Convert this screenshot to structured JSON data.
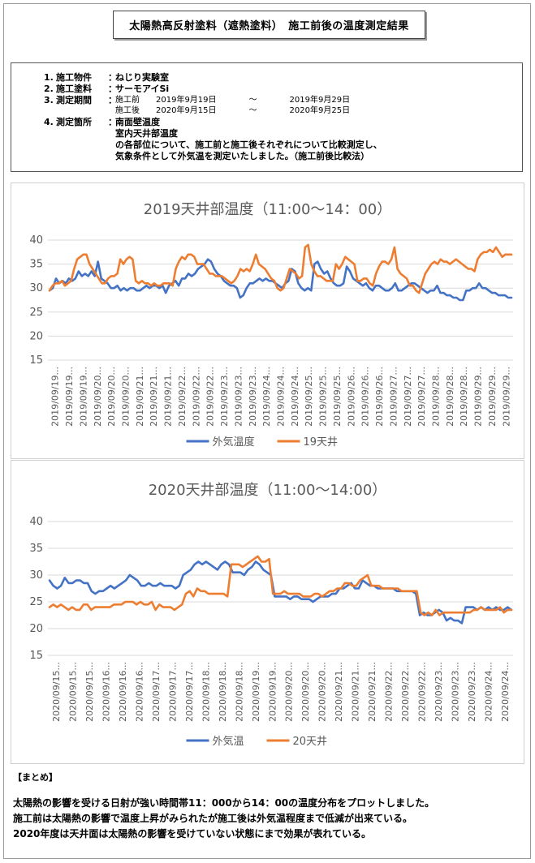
{
  "header": {
    "title": "太陽熱高反射塗料（遮熱塗料）　施工前後の温度測定結果"
  },
  "info": {
    "rows": [
      {
        "num": "1.",
        "key": "施工物件",
        "colon": "：",
        "value": "ねじり実験室"
      },
      {
        "num": "2.",
        "key": "施工塗料",
        "colon": "：",
        "value": "サーモアイSi"
      },
      {
        "num": "3.",
        "key": "測定期間",
        "colon": "：",
        "value": "施工前　　2019年9月19日　　　　～　　　　2019年9月29日"
      },
      {
        "num": "",
        "key": "",
        "colon": "",
        "value": "施工後　　2020年9月15日　　　　～　　　　2020年9月25日"
      },
      {
        "num": "4.",
        "key": "測定箇所",
        "colon": "：",
        "value": "南面壁温度"
      },
      {
        "num": "",
        "key": "",
        "colon": "",
        "value": "室内天井部温度"
      },
      {
        "num": "",
        "key": "",
        "colon": "",
        "value": "の各部位について、施工前と施工後それぞれについて比較測定し、"
      },
      {
        "num": "",
        "key": "",
        "colon": "",
        "value": "気象条件として外気温を測定いたしました。（施工前後比較法）"
      }
    ]
  },
  "chart_data": [
    {
      "type": "line",
      "title": "2019天井部温度（11:00～14：00）",
      "xlabel": "",
      "ylabel": "",
      "ylim": [
        15,
        40
      ],
      "yticks": [
        15,
        20,
        25,
        30,
        35,
        40
      ],
      "grid": true,
      "legend": "bottom",
      "xtick_labels": [
        "2019/09/19...",
        "2019/09/19...",
        "2019/09/19...",
        "2019/09/20...",
        "2019/09/20...",
        "2019/09/20...",
        "2019/09/21...",
        "2019/09/21...",
        "2019/09/21...",
        "2019/09/22...",
        "2019/09/22...",
        "2019/09/22...",
        "2019/09/23...",
        "2019/09/23...",
        "2019/09/23...",
        "2019/09/24...",
        "2019/09/24...",
        "2019/09/24...",
        "2019/09/25...",
        "2019/09/25...",
        "2019/09/25...",
        "2019/09/26...",
        "2019/09/26...",
        "2019/09/26...",
        "2019/09/27...",
        "2019/09/27...",
        "2019/09/27...",
        "2019/09/28...",
        "2019/09/28...",
        "2019/09/28...",
        "2019/09/29...",
        "2019/09/29...",
        "2019/09/29..."
      ],
      "series": [
        {
          "name": "外気温度",
          "color": "#4472c4",
          "values": [
            29.5,
            30,
            32,
            31,
            31.5,
            31,
            32,
            31.5,
            32,
            33.5,
            32.5,
            33,
            32.5,
            33.5,
            32.5,
            35.5,
            32,
            31.5,
            31,
            30,
            30,
            30.5,
            29.5,
            30,
            29.5,
            30,
            30,
            29.5,
            29.5,
            30,
            30.5,
            30,
            30.5,
            30.5,
            30,
            30.5,
            29,
            30.5,
            31,
            31.5,
            30.5,
            32,
            32,
            33,
            32.5,
            33,
            34,
            34.5,
            35,
            36,
            35.5,
            34,
            33,
            32.5,
            31.5,
            31,
            30.5,
            30.5,
            30,
            28,
            28.5,
            30,
            31,
            31,
            31.5,
            32,
            31.5,
            32,
            31.5,
            31.5,
            31,
            30.5,
            30,
            31,
            31.5,
            34,
            33.5,
            31,
            30,
            29.5,
            30,
            29.5,
            35,
            35.5,
            34,
            33,
            33.5,
            32,
            31,
            30.5,
            30.5,
            31,
            34.5,
            33.5,
            32,
            31.5,
            31,
            30.5,
            31,
            30,
            29.5,
            30.5,
            30.5,
            30,
            29.5,
            29.5,
            30,
            31,
            29.5,
            29.5,
            30,
            30.5,
            31,
            31,
            30.5,
            30,
            29.5,
            29,
            29.5,
            29.5,
            30.5,
            29,
            29,
            28.5,
            28.5,
            28,
            28,
            27.5,
            27.5,
            29.5,
            29.5,
            30,
            30,
            31,
            30,
            30,
            29.5,
            29,
            29,
            28.5,
            28.5,
            28.5,
            28,
            28
          ]
        },
        {
          "name": "19天井",
          "color": "#ed7d31",
          "values": [
            29.5,
            30.5,
            31,
            31,
            31.5,
            30.5,
            31,
            31.5,
            34,
            36,
            36.5,
            37,
            37,
            35,
            34,
            33,
            32,
            31,
            31,
            32,
            32.5,
            32.5,
            33,
            36,
            35,
            36,
            36.5,
            36,
            31.5,
            31,
            31.5,
            31,
            31,
            30.5,
            31,
            30.5,
            30.5,
            31,
            31,
            31,
            30.5,
            34,
            35.5,
            36.5,
            36,
            37,
            37,
            36.5,
            35,
            35,
            35,
            34,
            33,
            33,
            32.5,
            32.5,
            32.5,
            32,
            31.5,
            31,
            31.5,
            32.5,
            34,
            33.5,
            34,
            33.5,
            35,
            37,
            35,
            34.5,
            34,
            33,
            32,
            31.5,
            30,
            29.5,
            30,
            32,
            34,
            33.5,
            33,
            32,
            32.5,
            38.5,
            39,
            35,
            33.5,
            32.5,
            32.5,
            32,
            31.5,
            31.5,
            31.5,
            35,
            34,
            35,
            36.5,
            36,
            35.5,
            35,
            31.5,
            31.5,
            32,
            32,
            31,
            30.5,
            33,
            34.5,
            35.5,
            35.5,
            35,
            36,
            38.5,
            34,
            33,
            32.5,
            32,
            30.5,
            30.5,
            29.5,
            29,
            31,
            33,
            34,
            35,
            35.5,
            35,
            36,
            35.5,
            35.5,
            35,
            35.5,
            36,
            35.5,
            35,
            34.5,
            34,
            34,
            33.5,
            36,
            37,
            37.5,
            37.5,
            38,
            37.5,
            38.5,
            37.5,
            36.5,
            37,
            37,
            37
          ]
        }
      ]
    },
    {
      "type": "line",
      "title": "2020天井部温度（11:00～14:00）",
      "xlabel": "",
      "ylabel": "",
      "ylim": [
        15,
        40
      ],
      "yticks": [
        15,
        20,
        25,
        30,
        35,
        40
      ],
      "grid": true,
      "legend": "bottom",
      "xtick_labels": [
        "2020/09/15...",
        "2020/09/15...",
        "2020/09/15...",
        "2020/09/16...",
        "2020/09/16...",
        "2020/09/16...",
        "2020/09/17...",
        "2020/09/17...",
        "2020/09/17...",
        "2020/09/18...",
        "2020/09/18...",
        "2020/09/18...",
        "2020/09/19...",
        "2020/09/19...",
        "2020/09/20...",
        "2020/09/20...",
        "2020/09/20...",
        "2020/09/21...",
        "2020/09/21...",
        "2020/09/21...",
        "2020/09/22...",
        "2020/09/22...",
        "2020/09/22...",
        "2020/09/23...",
        "2020/09/23...",
        "2020/09/23...",
        "2020/09/24...",
        "2020/09/24..."
      ],
      "series": [
        {
          "name": "外気温",
          "color": "#4472c4",
          "values": [
            29,
            28,
            27.5,
            28,
            29.5,
            28.5,
            28.5,
            29,
            29,
            28.5,
            28.5,
            27,
            26.5,
            27,
            27,
            27.5,
            28,
            27.5,
            28,
            28.5,
            29,
            30,
            29.5,
            29,
            28,
            28,
            28.5,
            28,
            28,
            28.5,
            28,
            28,
            28,
            27.5,
            28,
            30,
            30.5,
            31,
            32,
            32.5,
            32,
            32.5,
            32,
            31.5,
            31,
            32,
            32.5,
            32,
            30.5,
            30.5,
            30.5,
            30,
            31,
            31.5,
            32.5,
            32,
            31,
            30.5,
            30,
            26,
            26,
            26,
            26,
            25.5,
            26,
            26,
            25.5,
            25.5,
            25.5,
            25,
            25.5,
            26,
            26,
            26,
            26.5,
            26.5,
            27.5,
            27.5,
            28,
            28.5,
            27.5,
            27.5,
            29,
            28.5,
            28,
            28,
            27.5,
            27.5,
            27.5,
            27.5,
            27.5,
            27,
            27,
            27,
            27,
            27,
            26.5,
            22.5,
            23,
            22.5,
            22.5,
            23,
            23.5,
            23,
            21.5,
            22,
            21.5,
            21.5,
            21,
            24,
            24,
            24,
            23.5,
            24,
            23.5,
            24,
            23.5,
            24,
            23.5,
            23.5,
            24,
            23.5
          ]
        },
        {
          "name": "20天井",
          "color": "#ed7d31",
          "values": [
            24,
            24.5,
            24,
            24.5,
            24,
            23.5,
            24,
            23.5,
            23.5,
            24.5,
            24.5,
            23.5,
            24,
            24,
            24,
            24,
            24,
            24.5,
            24.5,
            24.5,
            25,
            25,
            25,
            24.5,
            25,
            24.5,
            24.5,
            25,
            23.5,
            24.5,
            24,
            24,
            24,
            23.5,
            24,
            24.5,
            26.5,
            27,
            26,
            27.5,
            27,
            27,
            26.5,
            26.5,
            26.5,
            26.5,
            26.5,
            26,
            32,
            32,
            32,
            31.5,
            32,
            32.5,
            33,
            33.5,
            32.5,
            32.5,
            33,
            26.5,
            26.5,
            26.5,
            27,
            26.5,
            26.5,
            26.5,
            26.5,
            26,
            26,
            26,
            26.5,
            26.5,
            26,
            26.5,
            27,
            27,
            27.5,
            27.5,
            28.5,
            28.5,
            28,
            28,
            29,
            29.5,
            30,
            28,
            28,
            28,
            27.5,
            27.5,
            27.5,
            27.5,
            27.5,
            27,
            27,
            27,
            27,
            27,
            23,
            22.5,
            23,
            22.5,
            23.5,
            22.5,
            23,
            23,
            23,
            23,
            23,
            23,
            23,
            23,
            23.5,
            23.5,
            24,
            23.5,
            23.5,
            23.5,
            23.5,
            24,
            23,
            23.5,
            23.5
          ]
        }
      ]
    }
  ],
  "summary": {
    "label": "【まとめ】",
    "lines": [
      "太陽熱の影響を受ける日射が強い時間帯11：000から14：00の温度分布をプロットしました。",
      "施工前は太陽熱の影響で温度上昇がみられたが施工後は外気温程度まで低減が出来ている。",
      "2020年度は天井面は太陽熱の影響を受けていない状態にまで効果が表れている。"
    ]
  }
}
